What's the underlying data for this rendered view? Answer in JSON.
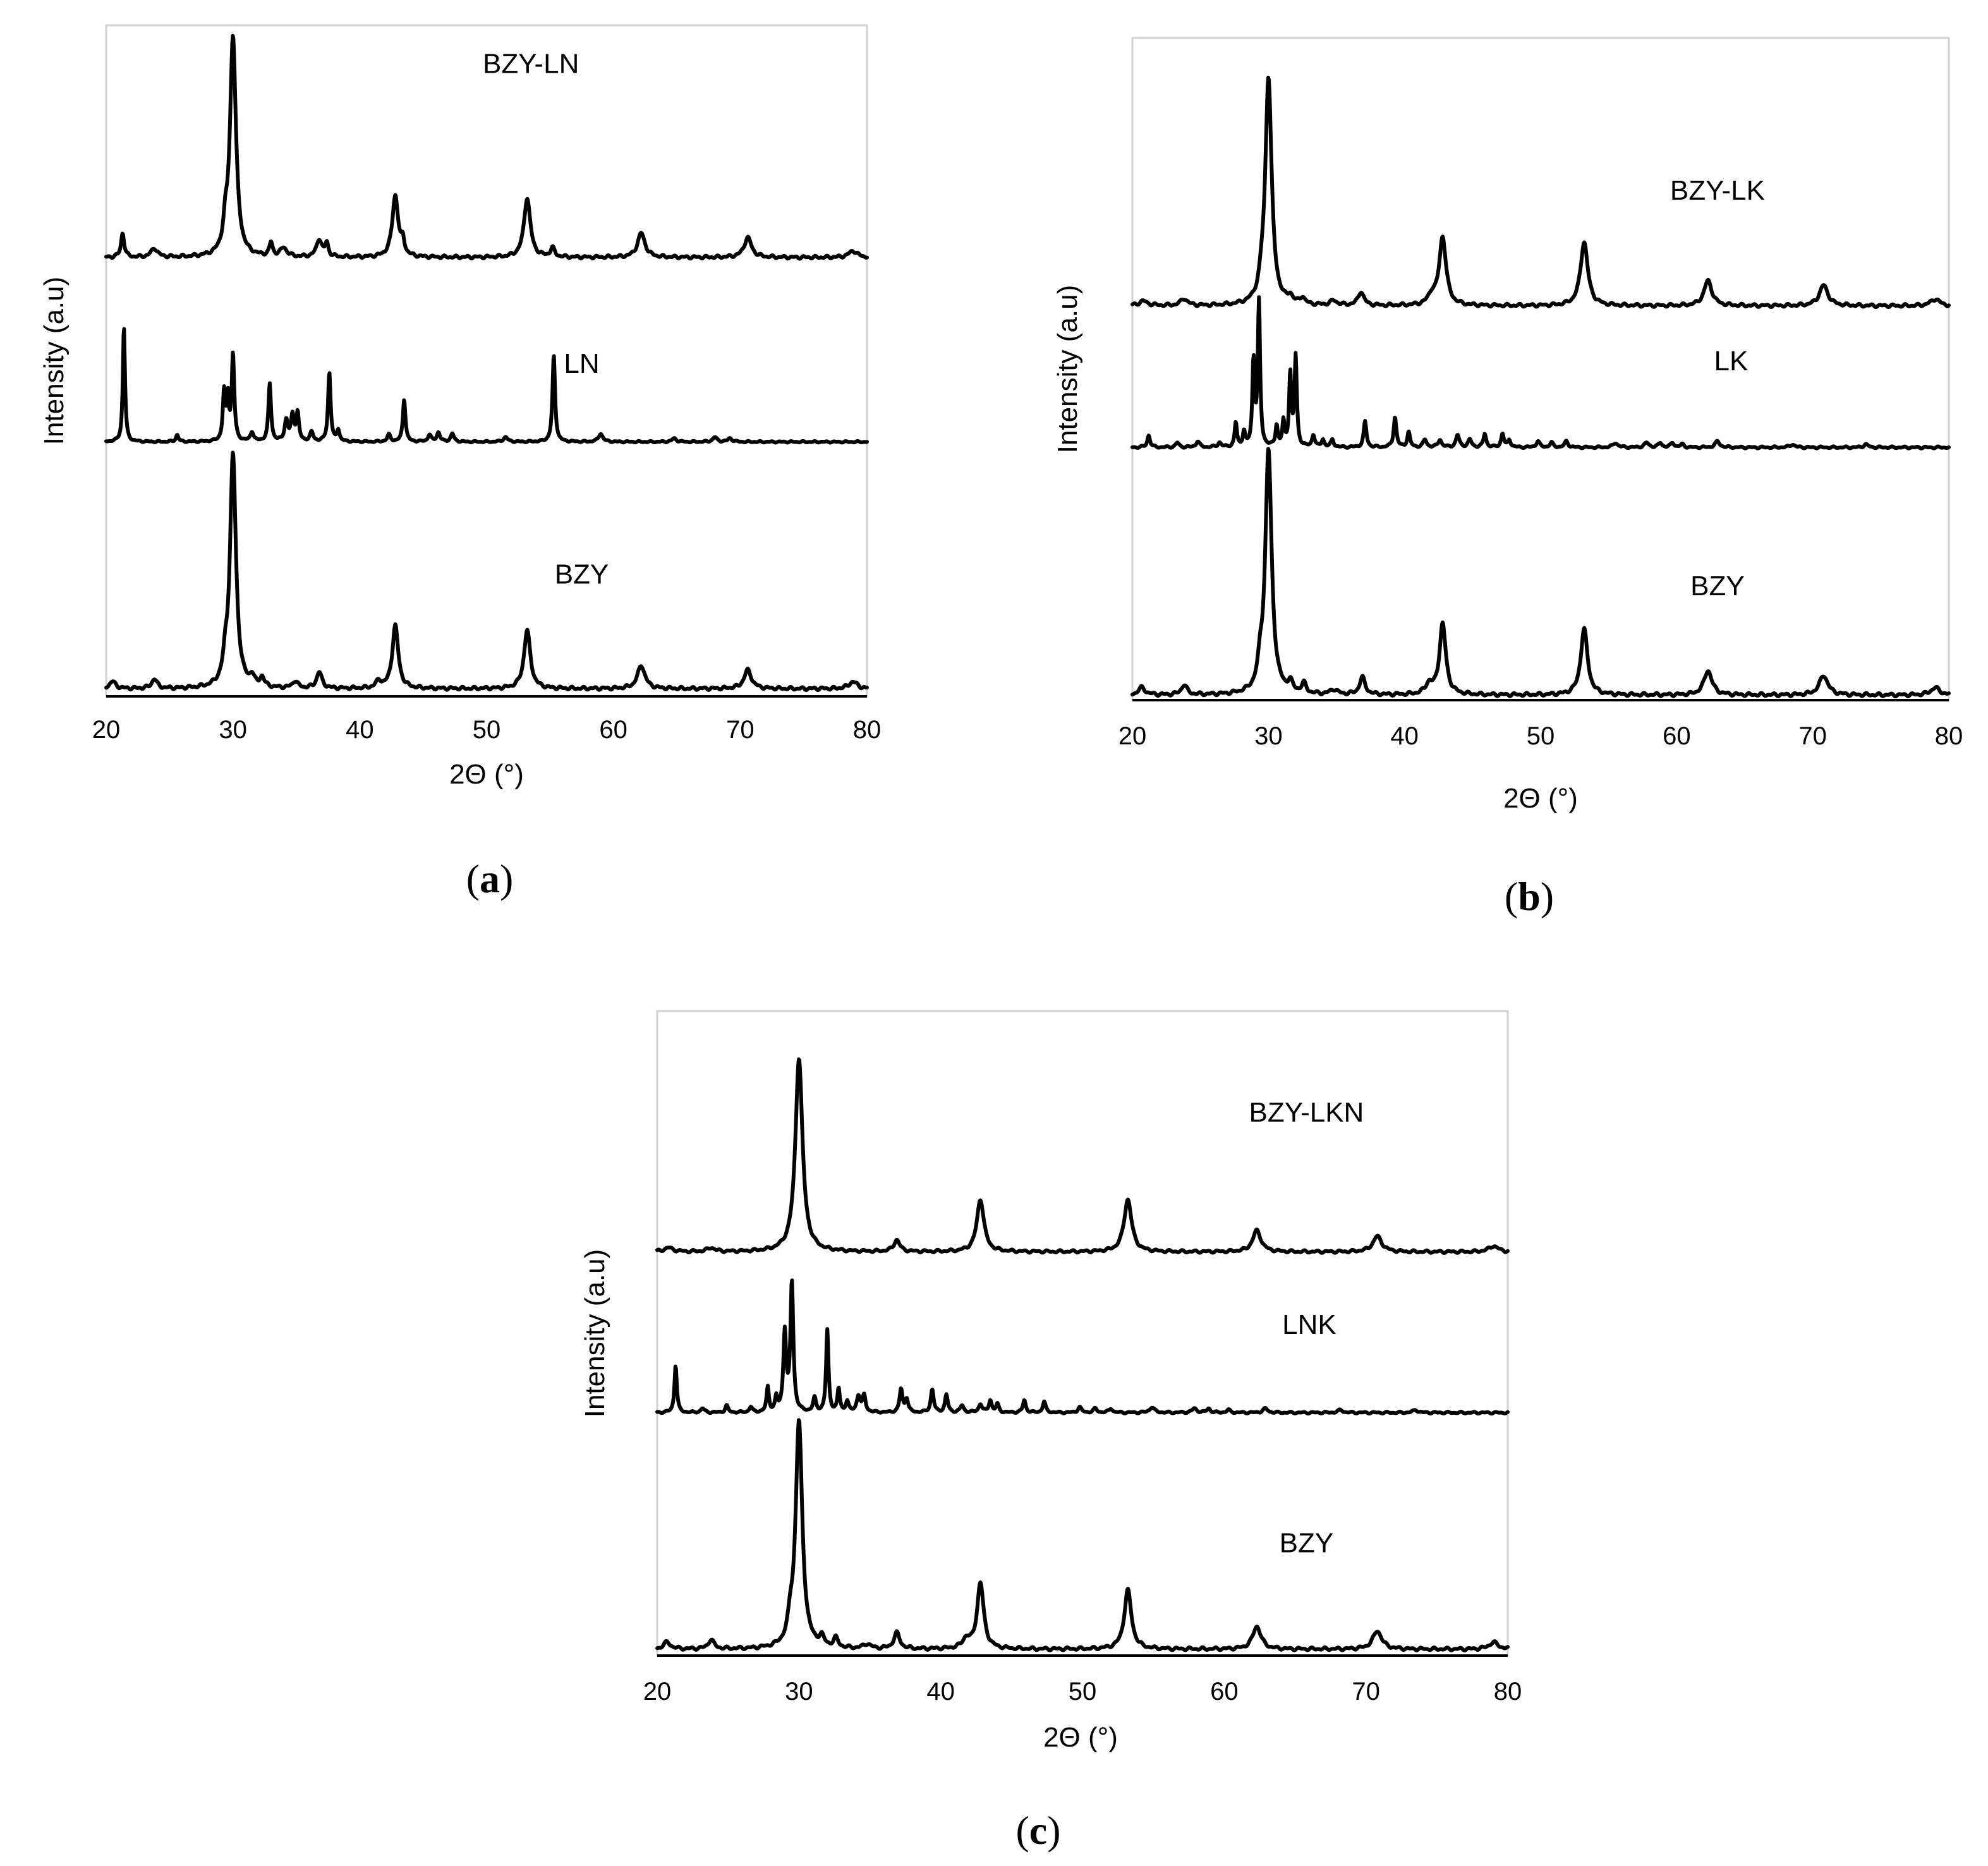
{
  "figure_colors": {
    "line": "#000000",
    "frame": "#d2d2d2",
    "background": "#ffffff"
  },
  "chart_data": [
    {
      "type": "line",
      "panel": "a",
      "caption_open": "(",
      "caption_letter": "a",
      "caption_close": ")",
      "xlabel": "2Θ (°)",
      "ylabel": "Intensity (a.u)",
      "xlim": [
        20,
        80
      ],
      "xticks": [
        "20",
        "30",
        "40",
        "50",
        "60",
        "70",
        "80"
      ],
      "baseline_noise": [
        [
          22.5,
          4
        ],
        [
          27,
          3
        ],
        [
          31.5,
          3
        ],
        [
          45.5,
          3
        ],
        [
          48.7,
          3
        ],
        [
          56.5,
          4
        ],
        [
          64.8,
          4
        ],
        [
          67.5,
          3
        ],
        [
          74.5,
          3
        ],
        [
          76.5,
          3
        ]
      ],
      "series": [
        {
          "name": "BZY-LN",
          "offset": 0.655,
          "scale": 0.335,
          "label_x": 53.5,
          "label_y": 0.935,
          "peaks": [
            [
              21.3,
              0.11,
              0.15
            ],
            [
              23.8,
              0.04,
              0.3
            ],
            [
              29.4,
              0.1,
              0.2
            ],
            [
              30.0,
              1.0,
              0.28
            ],
            [
              33.0,
              0.06,
              0.15
            ],
            [
              34.0,
              0.04,
              0.3
            ],
            [
              36.8,
              0.08,
              0.25
            ],
            [
              37.4,
              0.06,
              0.15
            ],
            [
              42.8,
              0.28,
              0.28
            ],
            [
              43.4,
              0.06,
              0.15
            ],
            [
              53.2,
              0.27,
              0.3
            ],
            [
              55.2,
              0.04,
              0.2
            ],
            [
              62.2,
              0.11,
              0.35
            ],
            [
              70.6,
              0.09,
              0.35
            ],
            [
              78.9,
              0.03,
              0.4
            ]
          ]
        },
        {
          "name": "LN",
          "offset": 0.375,
          "scale": 0.175,
          "label_x": 57.5,
          "label_y": 0.48,
          "peaks": [
            [
              21.4,
              1.0,
              0.1
            ],
            [
              25.6,
              0.06,
              0.12
            ],
            [
              29.3,
              0.42,
              0.12
            ],
            [
              29.6,
              0.35,
              0.1
            ],
            [
              30.0,
              0.75,
              0.12
            ],
            [
              31.5,
              0.08,
              0.15
            ],
            [
              32.9,
              0.5,
              0.12
            ],
            [
              34.2,
              0.18,
              0.15
            ],
            [
              34.7,
              0.22,
              0.15
            ],
            [
              35.1,
              0.24,
              0.12
            ],
            [
              36.2,
              0.08,
              0.15
            ],
            [
              37.6,
              0.6,
              0.12
            ],
            [
              38.3,
              0.1,
              0.12
            ],
            [
              42.3,
              0.06,
              0.15
            ],
            [
              43.5,
              0.37,
              0.12
            ],
            [
              45.5,
              0.06,
              0.15
            ],
            [
              46.2,
              0.08,
              0.15
            ],
            [
              47.3,
              0.07,
              0.15
            ],
            [
              51.5,
              0.04,
              0.2
            ],
            [
              55.3,
              0.75,
              0.12
            ],
            [
              59.0,
              0.07,
              0.2
            ],
            [
              64.8,
              0.03,
              0.2
            ],
            [
              68.0,
              0.04,
              0.2
            ],
            [
              69.2,
              0.03,
              0.2
            ]
          ]
        },
        {
          "name": "BZY",
          "offset": 0.0,
          "scale": 0.355,
          "label_x": 57.5,
          "label_y": 0.16,
          "peaks": [
            [
              20.5,
              0.03,
              0.3
            ],
            [
              23.8,
              0.04,
              0.25
            ],
            [
              29.4,
              0.08,
              0.2
            ],
            [
              30.0,
              1.0,
              0.28
            ],
            [
              31.5,
              0.04,
              0.2
            ],
            [
              32.3,
              0.04,
              0.2
            ],
            [
              34.9,
              0.03,
              0.25
            ],
            [
              36.8,
              0.07,
              0.25
            ],
            [
              41.5,
              0.03,
              0.25
            ],
            [
              42.8,
              0.27,
              0.28
            ],
            [
              53.2,
              0.25,
              0.3
            ],
            [
              62.2,
              0.1,
              0.35
            ],
            [
              70.6,
              0.08,
              0.35
            ],
            [
              78.9,
              0.03,
              0.4
            ]
          ]
        }
      ]
    },
    {
      "type": "line",
      "panel": "b",
      "caption_open": "(",
      "caption_letter": "b",
      "caption_close": ")",
      "xlabel": "2Θ (°)",
      "ylabel": "Intensity (a.u)",
      "xlim": [
        20,
        80
      ],
      "xticks": [
        "20",
        "30",
        "40",
        "50",
        "60",
        "70",
        "80"
      ],
      "baseline_noise": [
        [
          22.2,
          3
        ],
        [
          26.5,
          3
        ],
        [
          35.5,
          3
        ],
        [
          45.5,
          3
        ],
        [
          48.5,
          3
        ],
        [
          56.5,
          3
        ],
        [
          66.5,
          3
        ],
        [
          74.5,
          3
        ],
        [
          77,
          3
        ]
      ],
      "series": [
        {
          "name": "BZY-LK",
          "offset": 0.605,
          "scale": 0.355,
          "label_x": 63.0,
          "label_y": 0.77,
          "peaks": [
            [
              20.8,
              0.02,
              0.4
            ],
            [
              23.8,
              0.03,
              0.3
            ],
            [
              29.5,
              0.05,
              0.2
            ],
            [
              30.0,
              1.0,
              0.28
            ],
            [
              31.6,
              0.03,
              0.2
            ],
            [
              32.5,
              0.03,
              0.2
            ],
            [
              34.8,
              0.02,
              0.3
            ],
            [
              36.8,
              0.06,
              0.25
            ],
            [
              42.0,
              0.04,
              0.3
            ],
            [
              42.8,
              0.3,
              0.3
            ],
            [
              53.2,
              0.28,
              0.32
            ],
            [
              62.3,
              0.11,
              0.35
            ],
            [
              70.8,
              0.09,
              0.38
            ],
            [
              79.0,
              0.03,
              0.4
            ]
          ]
        },
        {
          "name": "LK",
          "offset": 0.385,
          "scale": 0.235,
          "label_x": 64.0,
          "label_y": 0.505,
          "peaks": [
            [
              21.2,
              0.08,
              0.12
            ],
            [
              23.3,
              0.03,
              0.15
            ],
            [
              24.8,
              0.04,
              0.15
            ],
            [
              26.4,
              0.03,
              0.15
            ],
            [
              27.6,
              0.16,
              0.1
            ],
            [
              28.2,
              0.1,
              0.1
            ],
            [
              28.9,
              0.56,
              0.1
            ],
            [
              29.3,
              0.95,
              0.1
            ],
            [
              30.6,
              0.14,
              0.1
            ],
            [
              31.1,
              0.16,
              0.1
            ],
            [
              31.6,
              0.48,
              0.1
            ],
            [
              32.0,
              0.59,
              0.1
            ],
            [
              33.3,
              0.08,
              0.12
            ],
            [
              34.0,
              0.05,
              0.12
            ],
            [
              34.7,
              0.05,
              0.12
            ],
            [
              37.1,
              0.17,
              0.12
            ],
            [
              39.3,
              0.2,
              0.12
            ],
            [
              40.3,
              0.1,
              0.12
            ],
            [
              41.5,
              0.05,
              0.15
            ],
            [
              42.6,
              0.05,
              0.15
            ],
            [
              43.9,
              0.08,
              0.15
            ],
            [
              44.8,
              0.05,
              0.15
            ],
            [
              45.9,
              0.09,
              0.12
            ],
            [
              47.2,
              0.09,
              0.12
            ],
            [
              47.7,
              0.05,
              0.12
            ],
            [
              49.8,
              0.04,
              0.15
            ],
            [
              50.8,
              0.03,
              0.15
            ],
            [
              51.9,
              0.04,
              0.15
            ],
            [
              55.5,
              0.03,
              0.2
            ],
            [
              57.8,
              0.03,
              0.2
            ],
            [
              58.8,
              0.03,
              0.15
            ],
            [
              59.7,
              0.03,
              0.15
            ],
            [
              60.4,
              0.02,
              0.15
            ],
            [
              63.0,
              0.04,
              0.2
            ],
            [
              68.5,
              0.02,
              0.2
            ],
            [
              73.9,
              0.02,
              0.2
            ]
          ]
        },
        {
          "name": "BZY",
          "offset": 0.0,
          "scale": 0.38,
          "label_x": 63.0,
          "label_y": 0.155,
          "peaks": [
            [
              20.7,
              0.03,
              0.3
            ],
            [
              23.8,
              0.04,
              0.25
            ],
            [
              29.4,
              0.08,
              0.2
            ],
            [
              30.0,
              1.0,
              0.28
            ],
            [
              31.6,
              0.04,
              0.2
            ],
            [
              32.6,
              0.04,
              0.2
            ],
            [
              34.8,
              0.02,
              0.3
            ],
            [
              36.9,
              0.07,
              0.25
            ],
            [
              41.8,
              0.04,
              0.3
            ],
            [
              42.8,
              0.29,
              0.28
            ],
            [
              53.2,
              0.27,
              0.3
            ],
            [
              62.3,
              0.1,
              0.35
            ],
            [
              70.8,
              0.08,
              0.38
            ],
            [
              79.0,
              0.03,
              0.4
            ]
          ]
        }
      ]
    },
    {
      "type": "line",
      "panel": "c",
      "caption_open": "(",
      "caption_letter": "c",
      "caption_close": ")",
      "xlabel": "2Θ (°)",
      "ylabel": "Intensity (a.u)",
      "xlim": [
        20,
        80
      ],
      "xticks": [
        "20",
        "30",
        "40",
        "50",
        "60",
        "70",
        "80"
      ],
      "baseline_noise": [
        [
          22.5,
          3
        ],
        [
          26.5,
          3
        ],
        [
          34.5,
          3
        ],
        [
          46.5,
          3
        ],
        [
          56.5,
          3
        ],
        [
          65.5,
          3
        ],
        [
          75.5,
          3
        ]
      ],
      "series": [
        {
          "name": "BZY-LKN",
          "offset": 0.655,
          "scale": 0.32,
          "label_x": 65.8,
          "label_y": 0.87,
          "peaks": [
            [
              20.8,
              0.02,
              0.4
            ],
            [
              23.8,
              0.02,
              0.3
            ],
            [
              30.0,
              1.0,
              0.3
            ],
            [
              36.9,
              0.06,
              0.25
            ],
            [
              42.8,
              0.27,
              0.3
            ],
            [
              53.2,
              0.27,
              0.32
            ],
            [
              62.3,
              0.11,
              0.35
            ],
            [
              70.8,
              0.08,
              0.38
            ],
            [
              79.0,
              0.03,
              0.4
            ]
          ]
        },
        {
          "name": "LNK",
          "offset": 0.39,
          "scale": 0.225,
          "label_x": 66.0,
          "label_y": 0.52,
          "peaks": [
            [
              21.3,
              0.35,
              0.1
            ],
            [
              23.2,
              0.03,
              0.15
            ],
            [
              24.9,
              0.05,
              0.12
            ],
            [
              26.6,
              0.04,
              0.12
            ],
            [
              27.8,
              0.18,
              0.1
            ],
            [
              28.4,
              0.1,
              0.1
            ],
            [
              29.0,
              0.58,
              0.12
            ],
            [
              29.5,
              0.95,
              0.12
            ],
            [
              31.1,
              0.1,
              0.12
            ],
            [
              32.0,
              0.6,
              0.1
            ],
            [
              32.8,
              0.17,
              0.1
            ],
            [
              33.4,
              0.08,
              0.12
            ],
            [
              34.2,
              0.12,
              0.15
            ],
            [
              34.6,
              0.12,
              0.12
            ],
            [
              37.2,
              0.17,
              0.12
            ],
            [
              37.6,
              0.1,
              0.12
            ],
            [
              39.4,
              0.17,
              0.12
            ],
            [
              40.4,
              0.13,
              0.12
            ],
            [
              41.5,
              0.05,
              0.15
            ],
            [
              42.8,
              0.06,
              0.15
            ],
            [
              43.5,
              0.09,
              0.12
            ],
            [
              44.0,
              0.06,
              0.12
            ],
            [
              45.9,
              0.09,
              0.12
            ],
            [
              47.3,
              0.08,
              0.12
            ],
            [
              49.8,
              0.04,
              0.15
            ],
            [
              50.9,
              0.03,
              0.15
            ],
            [
              52.0,
              0.03,
              0.15
            ],
            [
              54.9,
              0.04,
              0.2
            ],
            [
              57.9,
              0.03,
              0.2
            ],
            [
              58.9,
              0.03,
              0.15
            ],
            [
              60.3,
              0.02,
              0.15
            ],
            [
              62.9,
              0.03,
              0.2
            ],
            [
              68.2,
              0.02,
              0.2
            ],
            [
              73.5,
              0.02,
              0.2
            ]
          ]
        },
        {
          "name": "BZY",
          "offset": 0.0,
          "scale": 0.375,
          "label_x": 65.8,
          "label_y": 0.16,
          "peaks": [
            [
              20.7,
              0.03,
              0.3
            ],
            [
              23.8,
              0.04,
              0.25
            ],
            [
              29.4,
              0.08,
              0.2
            ],
            [
              30.0,
              1.0,
              0.28
            ],
            [
              31.6,
              0.04,
              0.2
            ],
            [
              32.6,
              0.04,
              0.2
            ],
            [
              34.8,
              0.02,
              0.3
            ],
            [
              36.9,
              0.07,
              0.25
            ],
            [
              41.8,
              0.04,
              0.3
            ],
            [
              42.8,
              0.29,
              0.28
            ],
            [
              53.2,
              0.26,
              0.3
            ],
            [
              62.3,
              0.1,
              0.35
            ],
            [
              70.8,
              0.08,
              0.38
            ],
            [
              79.0,
              0.03,
              0.4
            ]
          ]
        }
      ]
    }
  ]
}
